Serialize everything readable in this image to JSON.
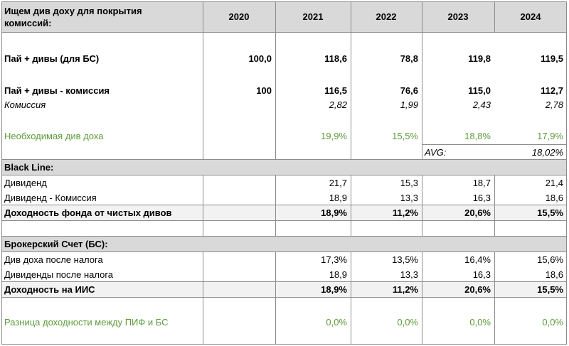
{
  "header": {
    "title_line1": "Ищем див доху для покрытия",
    "title_line2": "комиссий:",
    "years": [
      "2020",
      "2021",
      "2022",
      "2023",
      "2024"
    ]
  },
  "rows": {
    "pai_divs": {
      "label": "Пай + дивы (для БС)",
      "values": [
        "100,0",
        "118,6",
        "78,8",
        "119,8",
        "119,5"
      ]
    },
    "pai_minus_fee": {
      "label": "Пай + дивы - комиссия",
      "values": [
        "100",
        "116,5",
        "76,6",
        "115,0",
        "112,7"
      ]
    },
    "fee": {
      "label": "Комиссия",
      "values": [
        "",
        "2,82",
        "1,99",
        "2,43",
        "2,78"
      ]
    },
    "needed_yield": {
      "label": "Необходимая див доха",
      "values": [
        "",
        "19,9%",
        "15,5%",
        "18,8%",
        "17,9%"
      ]
    },
    "avg": {
      "label": "AVG:",
      "value": "18,02%"
    }
  },
  "black_line": {
    "title": "Black Line:",
    "dividend": {
      "label": "Дивиденд",
      "values": [
        "",
        "21,7",
        "15,3",
        "18,7",
        "21,4"
      ]
    },
    "dividend_minus_fee": {
      "label": "Дивиденд - Комиссия",
      "values": [
        "",
        "18,9",
        "13,3",
        "16,3",
        "18,6"
      ]
    },
    "fund_yield": {
      "label": "Доходность фонда от чистых дивов",
      "values": [
        "",
        "18,9%",
        "11,2%",
        "20,6%",
        "15,5%"
      ]
    }
  },
  "broker": {
    "title": "Брокерский Счет (БС):",
    "div_after_tax": {
      "label": "Див доха после налога",
      "values": [
        "",
        "17,3%",
        "13,5%",
        "16,4%",
        "15,6%"
      ]
    },
    "dividends_after_tax": {
      "label": "Дивиденды после налога",
      "values": [
        "",
        "18,9",
        "13,3",
        "16,3",
        "18,6"
      ]
    },
    "iis_yield": {
      "label": "Доходность на ИИС",
      "values": [
        "",
        "18,9%",
        "11,2%",
        "20,6%",
        "15,5%"
      ]
    }
  },
  "difference": {
    "label": "Разница доходности между ПИФ и БС",
    "values": [
      "",
      "0,0%",
      "0,0%",
      "0,0%",
      "0,0%"
    ]
  },
  "colors": {
    "green": "#5b9b3a",
    "header_grey": "#d9d9d9",
    "section_light": "#f2f2f2"
  }
}
